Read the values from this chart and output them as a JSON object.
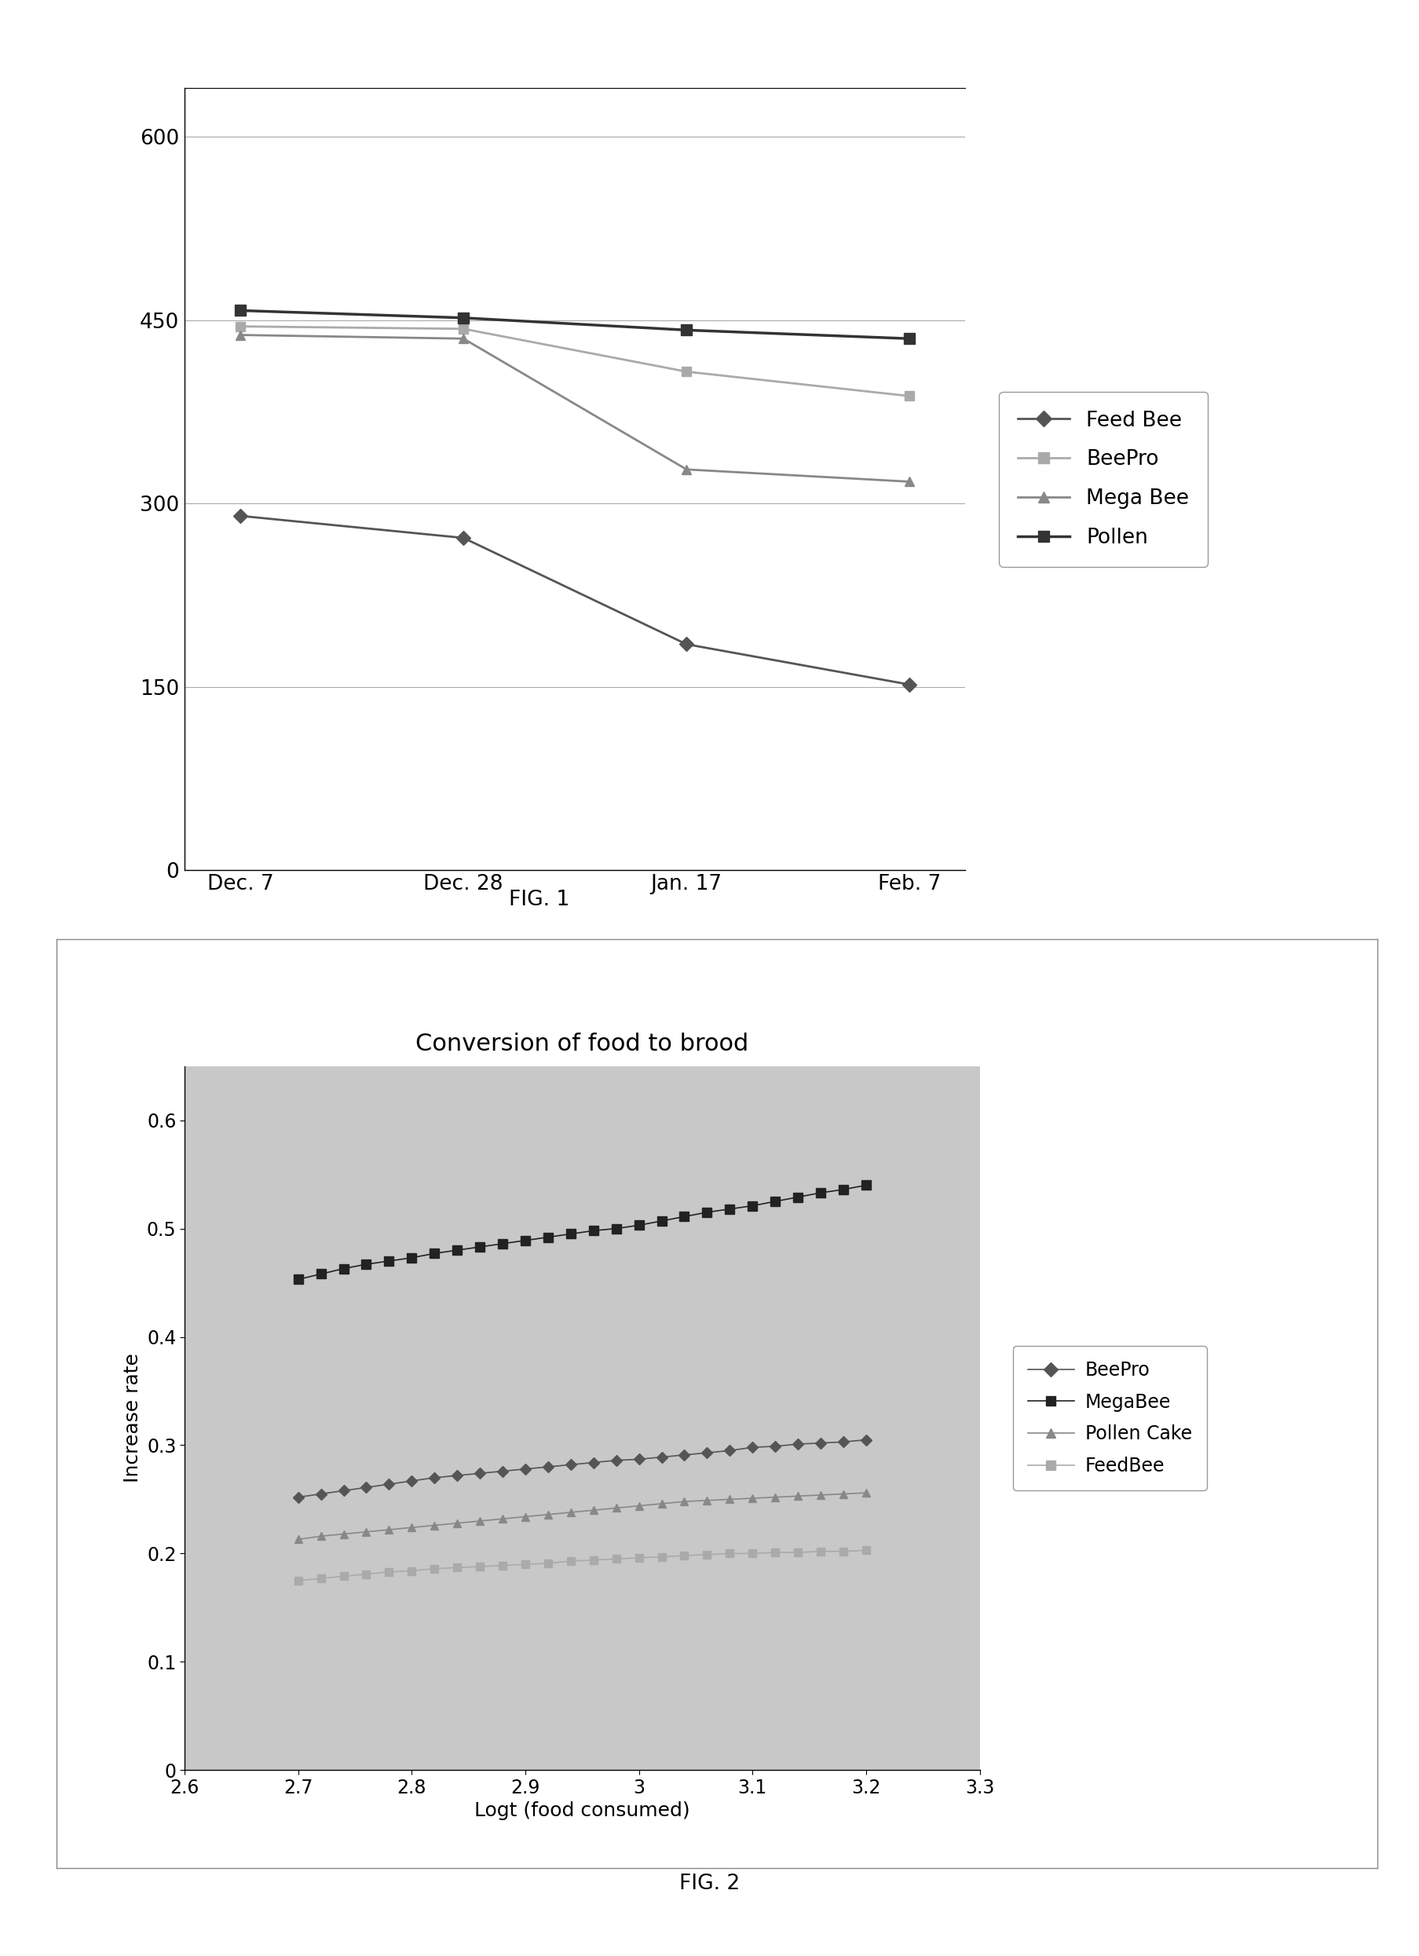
{
  "fig1": {
    "x_labels": [
      "Dec. 7",
      "Dec. 28",
      "Jan. 17",
      "Feb. 7"
    ],
    "series": {
      "Feed Bee": {
        "values": [
          290,
          272,
          185,
          152
        ],
        "color": "#555555",
        "marker": "D",
        "lw": 2.0,
        "ms": 9
      },
      "BeePro": {
        "values": [
          445,
          443,
          408,
          388
        ],
        "color": "#aaaaaa",
        "marker": "s",
        "lw": 2.0,
        "ms": 9
      },
      "Mega Bee": {
        "values": [
          438,
          435,
          328,
          318
        ],
        "color": "#888888",
        "marker": "^",
        "lw": 2.0,
        "ms": 9
      },
      "Pollen": {
        "values": [
          458,
          452,
          442,
          435
        ],
        "color": "#333333",
        "marker": "s",
        "lw": 2.5,
        "ms": 10
      }
    },
    "yticks": [
      0,
      150,
      300,
      450,
      600
    ],
    "ylim": [
      0,
      640
    ],
    "figcaption": "FIG. 1",
    "legend_order": [
      "Feed Bee",
      "BeePro",
      "Mega Bee",
      "Pollen"
    ]
  },
  "fig2": {
    "title": "Conversion of food to brood",
    "xlabel": "Logt (food consumed)",
    "ylabel": "Increase rate",
    "x_values": [
      2.7,
      2.72,
      2.74,
      2.76,
      2.78,
      2.8,
      2.82,
      2.84,
      2.86,
      2.88,
      2.9,
      2.92,
      2.94,
      2.96,
      2.98,
      3.0,
      3.02,
      3.04,
      3.06,
      3.08,
      3.1,
      3.12,
      3.14,
      3.16,
      3.18,
      3.2
    ],
    "series": {
      "BeePro": {
        "values": [
          0.252,
          0.255,
          0.258,
          0.261,
          0.264,
          0.267,
          0.27,
          0.272,
          0.274,
          0.276,
          0.278,
          0.28,
          0.282,
          0.284,
          0.286,
          0.287,
          0.289,
          0.291,
          0.293,
          0.295,
          0.298,
          0.299,
          0.301,
          0.302,
          0.303,
          0.305
        ],
        "color": "#555555",
        "marker": "D",
        "lw": 1.2,
        "ms": 7
      },
      "MegaBee": {
        "values": [
          0.453,
          0.458,
          0.463,
          0.467,
          0.47,
          0.473,
          0.477,
          0.48,
          0.483,
          0.486,
          0.489,
          0.492,
          0.495,
          0.498,
          0.5,
          0.503,
          0.507,
          0.511,
          0.515,
          0.518,
          0.521,
          0.525,
          0.529,
          0.533,
          0.536,
          0.54
        ],
        "color": "#222222",
        "marker": "s",
        "lw": 1.2,
        "ms": 8
      },
      "Pollen Cake": {
        "values": [
          0.213,
          0.216,
          0.218,
          0.22,
          0.222,
          0.224,
          0.226,
          0.228,
          0.23,
          0.232,
          0.234,
          0.236,
          0.238,
          0.24,
          0.242,
          0.244,
          0.246,
          0.248,
          0.249,
          0.25,
          0.251,
          0.252,
          0.253,
          0.254,
          0.255,
          0.256
        ],
        "color": "#888888",
        "marker": "^",
        "lw": 1.2,
        "ms": 7
      },
      "FeedBee": {
        "values": [
          0.175,
          0.177,
          0.179,
          0.181,
          0.183,
          0.184,
          0.186,
          0.187,
          0.188,
          0.189,
          0.19,
          0.191,
          0.193,
          0.194,
          0.195,
          0.196,
          0.197,
          0.198,
          0.199,
          0.2,
          0.2,
          0.201,
          0.201,
          0.202,
          0.202,
          0.203
        ],
        "color": "#aaaaaa",
        "marker": "s",
        "lw": 1.2,
        "ms": 7
      }
    },
    "yticks": [
      0,
      0.1,
      0.2,
      0.3,
      0.4,
      0.5,
      0.6
    ],
    "xticks": [
      2.6,
      2.7,
      2.8,
      2.9,
      3.0,
      3.1,
      3.2,
      3.3
    ],
    "ylim": [
      0,
      0.65
    ],
    "xlim": [
      2.6,
      3.3
    ],
    "figcaption": "FIG. 2",
    "legend_order": [
      "BeePro",
      "MegaBee",
      "Pollen Cake",
      "FeedBee"
    ],
    "bg_color": "#c8c8c8"
  },
  "figure_bg": "#ffffff"
}
